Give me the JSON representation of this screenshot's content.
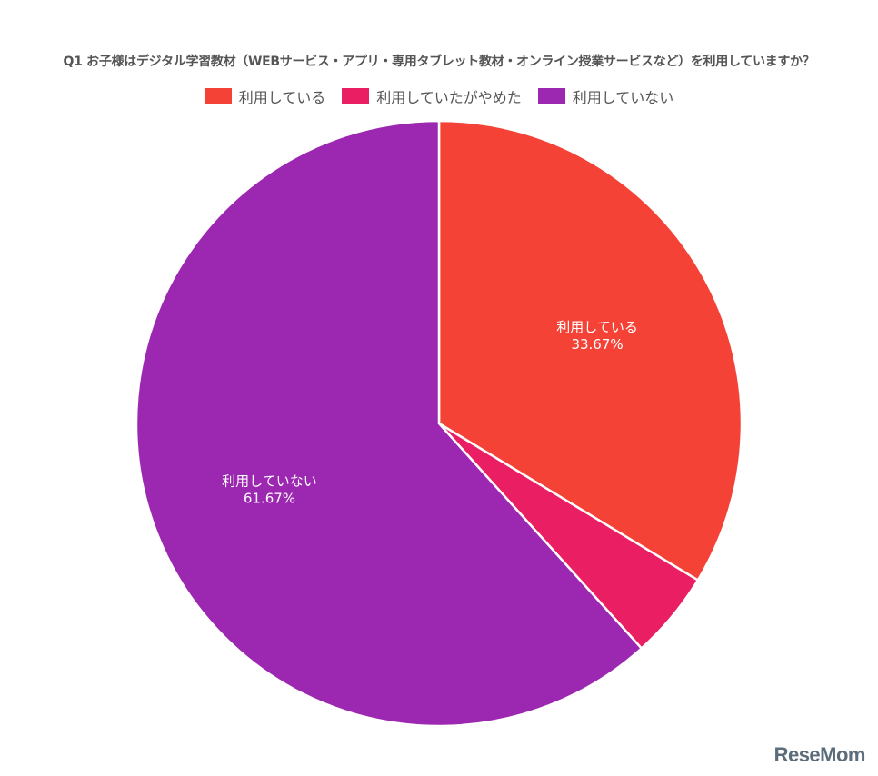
{
  "chart_data": {
    "type": "pie",
    "title": "Q1 お子様はデジタル学習教材（WEBサービス・アプリ・専用タブレット教材・オンライン授業サービスなど）を利用していますか？",
    "categories": [
      "利用している",
      "利用していたがやめた",
      "利用していない"
    ],
    "values": [
      33.67,
      4.67,
      61.67
    ],
    "colors": [
      "#f44336",
      "#e91e63",
      "#9c27b0"
    ],
    "data_labels": [
      {
        "label": "利用している",
        "value": "33.67%"
      },
      null,
      {
        "label": "利用していない",
        "value": "61.67%"
      }
    ],
    "legend_position": "top"
  },
  "watermark": "ReseMom"
}
